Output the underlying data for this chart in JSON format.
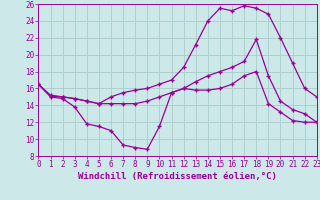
{
  "xlabel": "Windchill (Refroidissement éolien,°C)",
  "bg_color": "#cce8e8",
  "grid_color": "#aacccc",
  "line_color": "#990099",
  "xlim": [
    0,
    23
  ],
  "ylim": [
    8,
    26
  ],
  "xticks": [
    0,
    1,
    2,
    3,
    4,
    5,
    6,
    7,
    8,
    9,
    10,
    11,
    12,
    13,
    14,
    15,
    16,
    17,
    18,
    19,
    20,
    21,
    22,
    23
  ],
  "yticks": [
    8,
    10,
    12,
    14,
    16,
    18,
    20,
    22,
    24,
    26
  ],
  "series1_x": [
    0,
    1,
    2,
    3,
    4,
    5,
    6,
    7,
    8,
    9,
    10,
    11,
    12,
    13,
    14,
    15,
    16,
    17,
    18,
    19,
    20,
    21,
    22,
    23
  ],
  "series1_y": [
    16.5,
    15.0,
    14.8,
    13.8,
    11.8,
    11.5,
    11.0,
    9.3,
    9.0,
    8.8,
    11.5,
    15.5,
    16.0,
    15.8,
    15.8,
    16.0,
    16.5,
    17.5,
    18.0,
    14.2,
    13.2,
    12.2,
    12.0,
    12.0
  ],
  "series2_x": [
    0,
    1,
    2,
    3,
    4,
    5,
    6,
    7,
    8,
    9,
    10,
    11,
    12,
    13,
    14,
    15,
    16,
    17,
    18,
    19,
    20,
    21,
    22,
    23
  ],
  "series2_y": [
    16.5,
    15.1,
    15.0,
    14.8,
    14.5,
    14.2,
    14.2,
    14.2,
    14.2,
    14.5,
    15.0,
    15.5,
    16.0,
    16.8,
    17.5,
    18.0,
    18.5,
    19.2,
    21.8,
    17.5,
    14.5,
    13.5,
    13.0,
    12.0
  ],
  "series3_x": [
    0,
    1,
    2,
    3,
    4,
    5,
    6,
    7,
    8,
    9,
    10,
    11,
    12,
    13,
    14,
    15,
    16,
    17,
    18,
    19,
    20,
    21,
    22,
    23
  ],
  "series3_y": [
    16.5,
    15.2,
    15.0,
    14.8,
    14.5,
    14.2,
    15.0,
    15.5,
    15.8,
    16.0,
    16.5,
    17.0,
    18.5,
    21.2,
    24.0,
    25.5,
    25.2,
    25.8,
    25.5,
    24.8,
    22.0,
    19.0,
    16.0,
    15.0
  ],
  "xlabel_fontsize": 6.5,
  "tick_fontsize": 5.5
}
